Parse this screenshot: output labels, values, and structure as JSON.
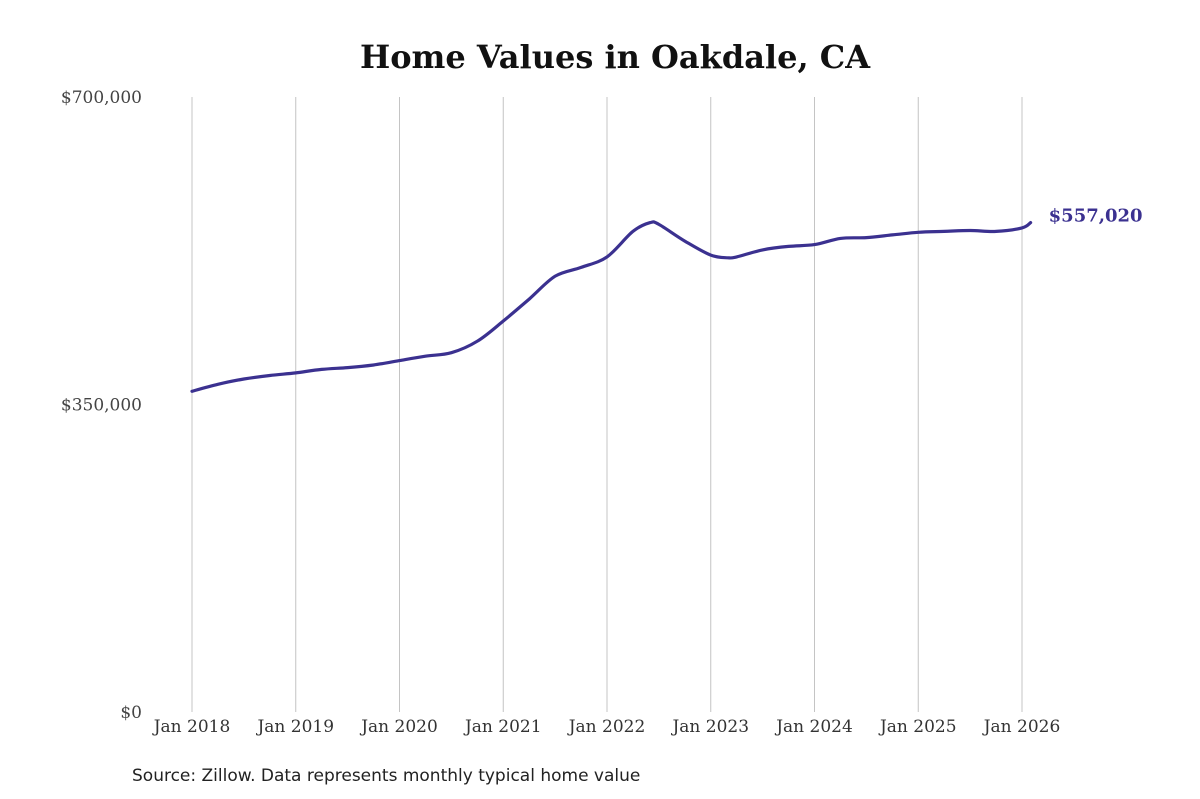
{
  "chart_data": {
    "type": "line",
    "title": "Home Values in Oakdale, CA",
    "source": "Source: Zillow. Data represents monthly typical home value",
    "ylim": [
      0,
      700000
    ],
    "y_ticks": [
      {
        "value": 0,
        "label": "$0"
      },
      {
        "value": 350000,
        "label": "$350,000"
      },
      {
        "value": 700000,
        "label": "$700,000"
      }
    ],
    "x_ticks": [
      "Jan 2018",
      "Jan 2019",
      "Jan 2020",
      "Jan 2021",
      "Jan 2022",
      "Jan 2023",
      "Jan 2024",
      "Jan 2025",
      "Jan 2026"
    ],
    "grid": "vertical",
    "line_color": "#3b3190",
    "end_label": "$557,020",
    "series": [
      {
        "x": [
          "2018-01",
          "2018-04",
          "2018-07",
          "2018-10",
          "2019-01",
          "2019-04",
          "2019-07",
          "2019-10",
          "2020-01",
          "2020-04",
          "2020-07",
          "2020-10",
          "2021-01",
          "2021-04",
          "2021-07",
          "2021-10",
          "2022-01",
          "2022-04",
          "2022-06",
          "2022-07",
          "2022-10",
          "2023-01",
          "2023-03",
          "2023-04",
          "2023-07",
          "2023-10",
          "2024-01",
          "2024-04",
          "2024-07",
          "2024-10",
          "2025-01",
          "2025-04",
          "2025-07",
          "2025-10",
          "2026-01",
          "2026-02"
        ],
        "y": [
          365000,
          373000,
          379000,
          383000,
          386000,
          390000,
          392000,
          395000,
          400000,
          405000,
          409000,
          422000,
          445000,
          470000,
          496000,
          506000,
          518000,
          547000,
          557000,
          555000,
          536000,
          520000,
          517000,
          518000,
          526000,
          530000,
          532000,
          539000,
          540000,
          543000,
          546000,
          547000,
          548000,
          547000,
          551000,
          557020
        ]
      }
    ]
  }
}
